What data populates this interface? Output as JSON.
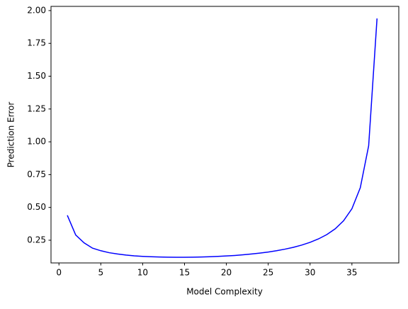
{
  "chart_data": {
    "type": "line",
    "xlabel": "Model Complexity",
    "ylabel": "Prediction Error",
    "x": [
      1,
      2,
      3,
      4,
      5,
      6,
      7,
      8,
      9,
      10,
      11,
      12,
      13,
      14,
      15,
      16,
      17,
      18,
      19,
      20,
      21,
      22,
      23,
      24,
      25,
      26,
      27,
      28,
      29,
      30,
      31,
      32,
      33,
      34,
      35,
      36,
      37,
      38
    ],
    "series": [
      {
        "color": "#0000ff",
        "values": [
          0.44,
          0.29,
          0.23,
          0.19,
          0.17,
          0.155,
          0.145,
          0.137,
          0.131,
          0.127,
          0.124,
          0.122,
          0.121,
          0.12,
          0.12,
          0.121,
          0.122,
          0.124,
          0.127,
          0.13,
          0.134,
          0.139,
          0.145,
          0.152,
          0.16,
          0.17,
          0.182,
          0.196,
          0.213,
          0.234,
          0.26,
          0.293,
          0.337,
          0.398,
          0.49,
          0.65,
          0.97,
          1.94
        ]
      }
    ],
    "xlim": [
      -0.95,
      40.6
    ],
    "ylim": [
      0.077,
      2.032
    ],
    "xticks": [
      0,
      5,
      10,
      15,
      20,
      25,
      30,
      35
    ],
    "yticks": [
      0.25,
      {
        "value": 0.5,
        "label": "0.50"
      },
      0.75,
      {
        "value": 1,
        "label": "1.00"
      },
      1.25,
      {
        "value": 1.5,
        "label": "1.50"
      },
      1.75,
      {
        "value": 2,
        "label": "2.00"
      }
    ]
  }
}
